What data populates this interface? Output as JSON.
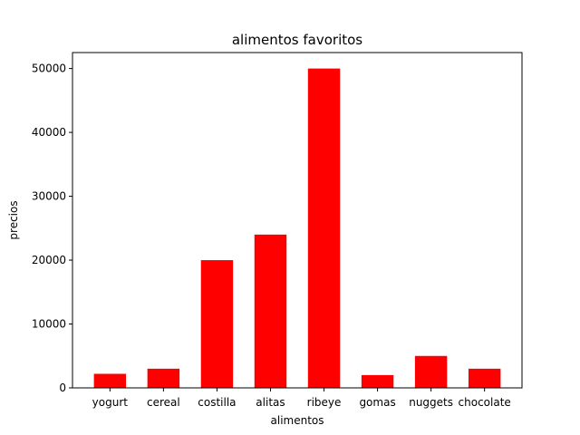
{
  "chart_data": {
    "type": "bar",
    "title": "alimentos  favoritos",
    "xlabel": "alimentos",
    "ylabel": "precios",
    "categories": [
      "yogurt",
      "cereal",
      "costilla",
      "alitas",
      "ribeye",
      "gomas",
      "nuggets",
      "chocolate"
    ],
    "values": [
      2200,
      3000,
      20000,
      24000,
      50000,
      2000,
      5000,
      3000
    ],
    "ylim": [
      0,
      52500
    ],
    "yticks": [
      0,
      10000,
      20000,
      30000,
      40000,
      50000
    ],
    "bar_color": "#ff0000",
    "grid": false,
    "legend": "none"
  }
}
